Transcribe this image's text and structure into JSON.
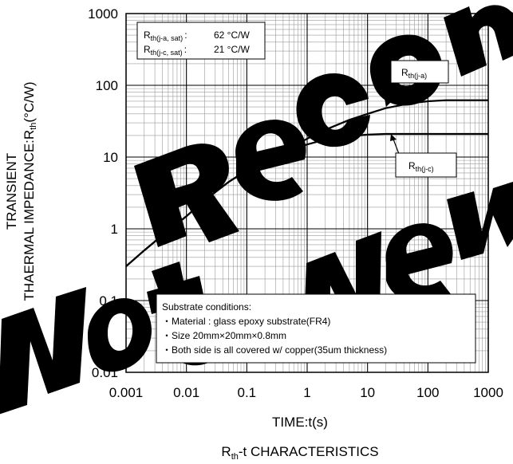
{
  "chart_data": {
    "type": "line",
    "title": "",
    "caption": {
      "main": "R",
      "sub": "th",
      "rest": "-t CHARACTERISTICS"
    },
    "xlabel": "TIME:t(s)",
    "ylabel": {
      "line1": "TRANSIENT",
      "line2_main": "THAERMAL IMPEDANCE:R",
      "line2_sub": "th",
      "line2_rest": "(°C/W)"
    },
    "x_scale": "log",
    "y_scale": "log",
    "xlim": [
      0.001,
      1000
    ],
    "ylim": [
      0.01,
      1000
    ],
    "x_ticks": [
      {
        "value": 0.001,
        "label": "0.001"
      },
      {
        "value": 0.01,
        "label": "0.01"
      },
      {
        "value": 0.1,
        "label": "0.1"
      },
      {
        "value": 1,
        "label": "1"
      },
      {
        "value": 10,
        "label": "10"
      },
      {
        "value": 100,
        "label": "100"
      },
      {
        "value": 1000,
        "label": "1000"
      }
    ],
    "y_ticks": [
      {
        "value": 0.01,
        "label": "0.01"
      },
      {
        "value": 0.1,
        "label": "0.1"
      },
      {
        "value": 1,
        "label": "1"
      },
      {
        "value": 10,
        "label": "10"
      },
      {
        "value": 100,
        "label": "100"
      },
      {
        "value": 1000,
        "label": "1000"
      }
    ],
    "grid": true,
    "series": [
      {
        "name": "th(j-a)",
        "label_main": "R",
        "label_sub": "th(j-a)",
        "color": "#000000",
        "x": [
          0.001,
          0.002,
          0.005,
          0.01,
          0.02,
          0.05,
          0.1,
          0.2,
          0.5,
          1,
          2,
          5,
          10,
          20,
          50,
          100,
          200,
          500,
          1000
        ],
        "y": [
          0.3,
          0.5,
          0.95,
          1.5,
          2.5,
          4.5,
          6.5,
          8.5,
          13,
          18,
          24,
          33,
          40,
          48,
          56,
          60,
          62,
          62,
          62
        ]
      },
      {
        "name": "th(j-c)",
        "label_main": "R",
        "label_sub": "th(j-c)",
        "color": "#000000",
        "x": [
          0.001,
          0.002,
          0.005,
          0.01,
          0.02,
          0.05,
          0.1,
          0.2,
          0.5,
          1,
          2,
          5,
          10,
          20,
          50,
          100,
          200,
          500,
          1000
        ],
        "y": [
          0.3,
          0.5,
          0.95,
          1.5,
          2.5,
          4.5,
          6.5,
          8.5,
          12,
          15,
          17.5,
          19.5,
          20.5,
          21,
          21,
          21,
          21,
          21,
          21
        ]
      }
    ],
    "param_box": {
      "rows": [
        {
          "main": "R",
          "sub": "th(j-a, sat)",
          "sep": ":",
          "value": "62 °C/W"
        },
        {
          "main": "R",
          "sub": "th(j-c, sat)",
          "sep": ":",
          "value": "21 °C/W"
        }
      ]
    },
    "substrate_box": {
      "heading": "Substrate conditions:",
      "items": [
        "・Material : glass epoxy substrate(FR4)",
        "・Size 20mm×20mm×0.8mm",
        "・Both side is all covered w/ copper(35um thickness)"
      ]
    },
    "watermark": "Not Recommended for New Designs"
  }
}
